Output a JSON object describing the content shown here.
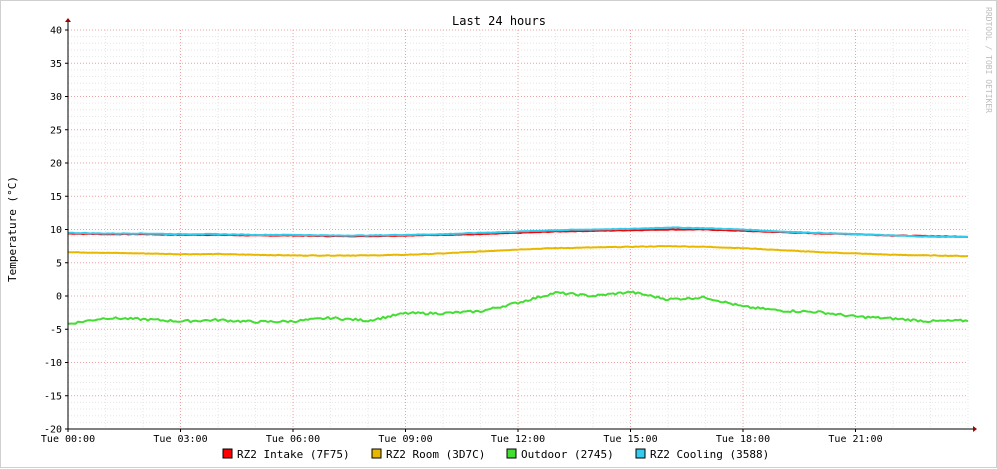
{
  "chart_data": {
    "type": "line",
    "title": "Last 24 hours",
    "ylabel": "Temperature (°C)",
    "xlabel": "",
    "watermark": "RRDTOOL / TOBI OETIKER",
    "ylim": [
      -20,
      40
    ],
    "yticks": [
      40,
      35,
      30,
      25,
      20,
      15,
      10,
      5,
      0,
      -5,
      -10,
      -15,
      -20
    ],
    "xlim": [
      0,
      24
    ],
    "xticks": [
      {
        "v": 0,
        "label": "Tue 00:00"
      },
      {
        "v": 3,
        "label": "Tue 03:00"
      },
      {
        "v": 6,
        "label": "Tue 06:00"
      },
      {
        "v": 9,
        "label": "Tue 09:00"
      },
      {
        "v": 12,
        "label": "Tue 12:00"
      },
      {
        "v": 15,
        "label": "Tue 15:00"
      },
      {
        "v": 18,
        "label": "Tue 18:00"
      },
      {
        "v": 21,
        "label": "Tue 21:00"
      }
    ],
    "grid": true,
    "legend_position": "bottom",
    "x": [
      0,
      1,
      2,
      3,
      4,
      5,
      6,
      7,
      8,
      9,
      10,
      11,
      12,
      13,
      14,
      15,
      16,
      17,
      18,
      19,
      20,
      21,
      22,
      23,
      24
    ],
    "series": [
      {
        "name": "RZ2 Intake (7F75)",
        "color": "#ff0000",
        "values": [
          9.4,
          9.3,
          9.3,
          9.2,
          9.2,
          9.1,
          9.1,
          9.0,
          9.0,
          9.1,
          9.2,
          9.3,
          9.5,
          9.7,
          9.8,
          9.9,
          10.0,
          10.0,
          9.8,
          9.6,
          9.4,
          9.3,
          9.1,
          9.0,
          8.9
        ]
      },
      {
        "name": "RZ2 Room (3D7C)",
        "color": "#e8b800",
        "values": [
          6.6,
          6.5,
          6.4,
          6.3,
          6.3,
          6.2,
          6.1,
          6.1,
          6.1,
          6.2,
          6.4,
          6.7,
          7.0,
          7.2,
          7.3,
          7.4,
          7.5,
          7.4,
          7.2,
          6.9,
          6.6,
          6.4,
          6.2,
          6.1,
          6.0
        ]
      },
      {
        "name": "Outdoor (2745)",
        "color": "#44dd33",
        "values": [
          -4.2,
          -3.3,
          -3.5,
          -3.8,
          -3.6,
          -3.9,
          -3.8,
          -3.3,
          -3.7,
          -2.6,
          -2.6,
          -2.3,
          -1.0,
          0.5,
          0.0,
          0.6,
          -0.5,
          -0.2,
          -1.6,
          -2.2,
          -2.4,
          -3.1,
          -3.4,
          -3.8,
          -3.7
        ]
      },
      {
        "name": "RZ2 Cooling (3588)",
        "color": "#33ccee",
        "values": [
          9.5,
          9.4,
          9.4,
          9.3,
          9.3,
          9.2,
          9.2,
          9.1,
          9.1,
          9.2,
          9.3,
          9.5,
          9.7,
          9.9,
          10.0,
          10.1,
          10.3,
          10.2,
          10.0,
          9.7,
          9.5,
          9.3,
          9.1,
          8.9,
          8.9
        ]
      }
    ]
  }
}
